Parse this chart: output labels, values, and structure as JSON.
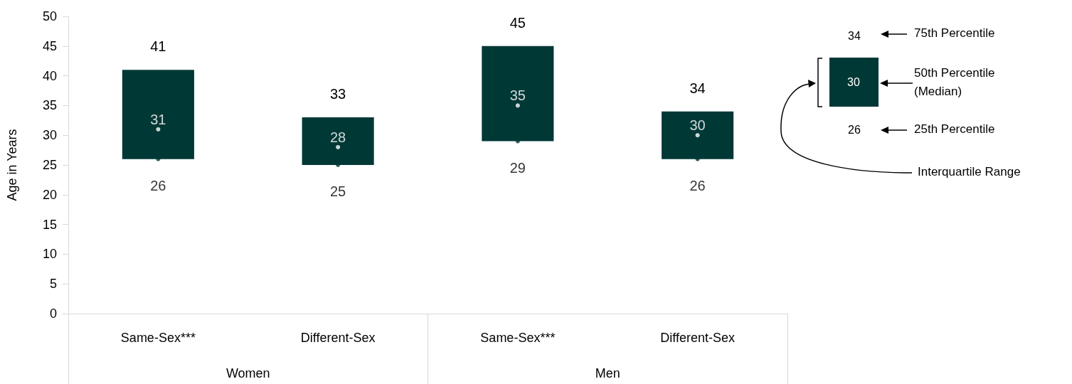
{
  "chart_data": {
    "type": "bar",
    "ylabel": "Age in Years",
    "categories": [
      "Same-Sex***",
      "Different-Sex",
      "Same-Sex***",
      "Different-Sex"
    ],
    "ylim": [
      0,
      50
    ],
    "yticks": [
      0,
      5,
      10,
      15,
      20,
      25,
      30,
      35,
      40,
      45,
      50
    ],
    "grid": false,
    "series": [
      {
        "color": "#003836",
        "base": [
          26,
          25,
          29,
          26
        ],
        "values": [
          15,
          8,
          16,
          8
        ],
        "value_labels": [
          "41",
          "33",
          "45",
          "34"
        ]
      },
      {
        "type": "scatter",
        "color": "#ffffff",
        "marker": "circle",
        "values": [
          31,
          28,
          35,
          30
        ],
        "value_labels": [
          "31",
          "28",
          "35",
          "30"
        ]
      },
      {
        "type": "scatter",
        "color": "#003836",
        "marker": "circle",
        "values": [
          26,
          25,
          29,
          26
        ],
        "value_labels": [
          "26",
          "25",
          "29",
          "26"
        ]
      }
    ],
    "annotations": [
      "Women",
      "Men",
      "34",
      "75th Percentile",
      "30",
      "50th Percentile",
      "(Median)",
      "26",
      "25th Percentile",
      "Interquartile Range"
    ]
  }
}
